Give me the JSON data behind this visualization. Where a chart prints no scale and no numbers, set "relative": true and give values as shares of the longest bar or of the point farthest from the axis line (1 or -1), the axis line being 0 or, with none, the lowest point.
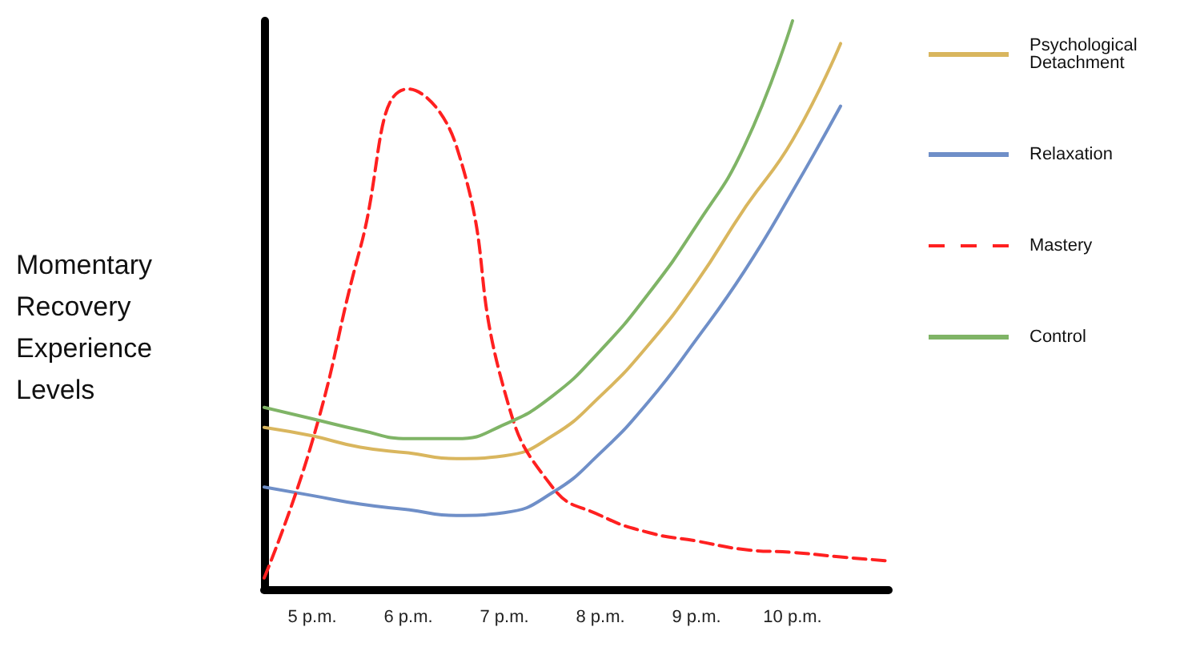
{
  "chart_data": {
    "type": "line",
    "relative": true,
    "ylabel": "Momentary Recovery Experience Levels",
    "categories": [
      null,
      "5 p.m.",
      null,
      "6 p.m.",
      null,
      "7 p.m.",
      null,
      "8 p.m.",
      null,
      "9 p.m.",
      null,
      "10 p.m.",
      null,
      null
    ],
    "legend": "right",
    "grid": false,
    "marker": "none",
    "series": [
      {
        "name": "Psychological Detachment",
        "color": "#d9b65e",
        "line_style": "solid",
        "values": [
          0.285,
          0.27,
          0.25,
          0.24,
          0.23,
          0.235,
          0.27,
          0.34,
          0.43,
          0.54,
          0.67,
          0.79,
          0.96,
          null
        ]
      },
      {
        "name": "Relaxation",
        "color": "#6f8fc8",
        "line_style": "solid",
        "values": [
          0.18,
          0.165,
          0.15,
          0.14,
          0.13,
          0.135,
          0.17,
          0.24,
          0.33,
          0.44,
          0.56,
          0.7,
          0.85,
          null
        ]
      },
      {
        "name": "Mastery",
        "color": "#ff2020",
        "line_style": "dashed",
        "values": [
          0.02,
          0.26,
          0.6,
          0.88,
          0.78,
          0.35,
          0.18,
          0.13,
          0.1,
          0.085,
          0.07,
          0.065,
          0.057,
          0.05
        ]
      },
      {
        "name": "Control",
        "color": "#7fb466",
        "line_style": "solid",
        "values": [
          0.32,
          0.3,
          0.28,
          0.265,
          0.265,
          0.29,
          0.34,
          0.42,
          0.52,
          0.64,
          0.78,
          1.0,
          null,
          null
        ]
      }
    ]
  }
}
